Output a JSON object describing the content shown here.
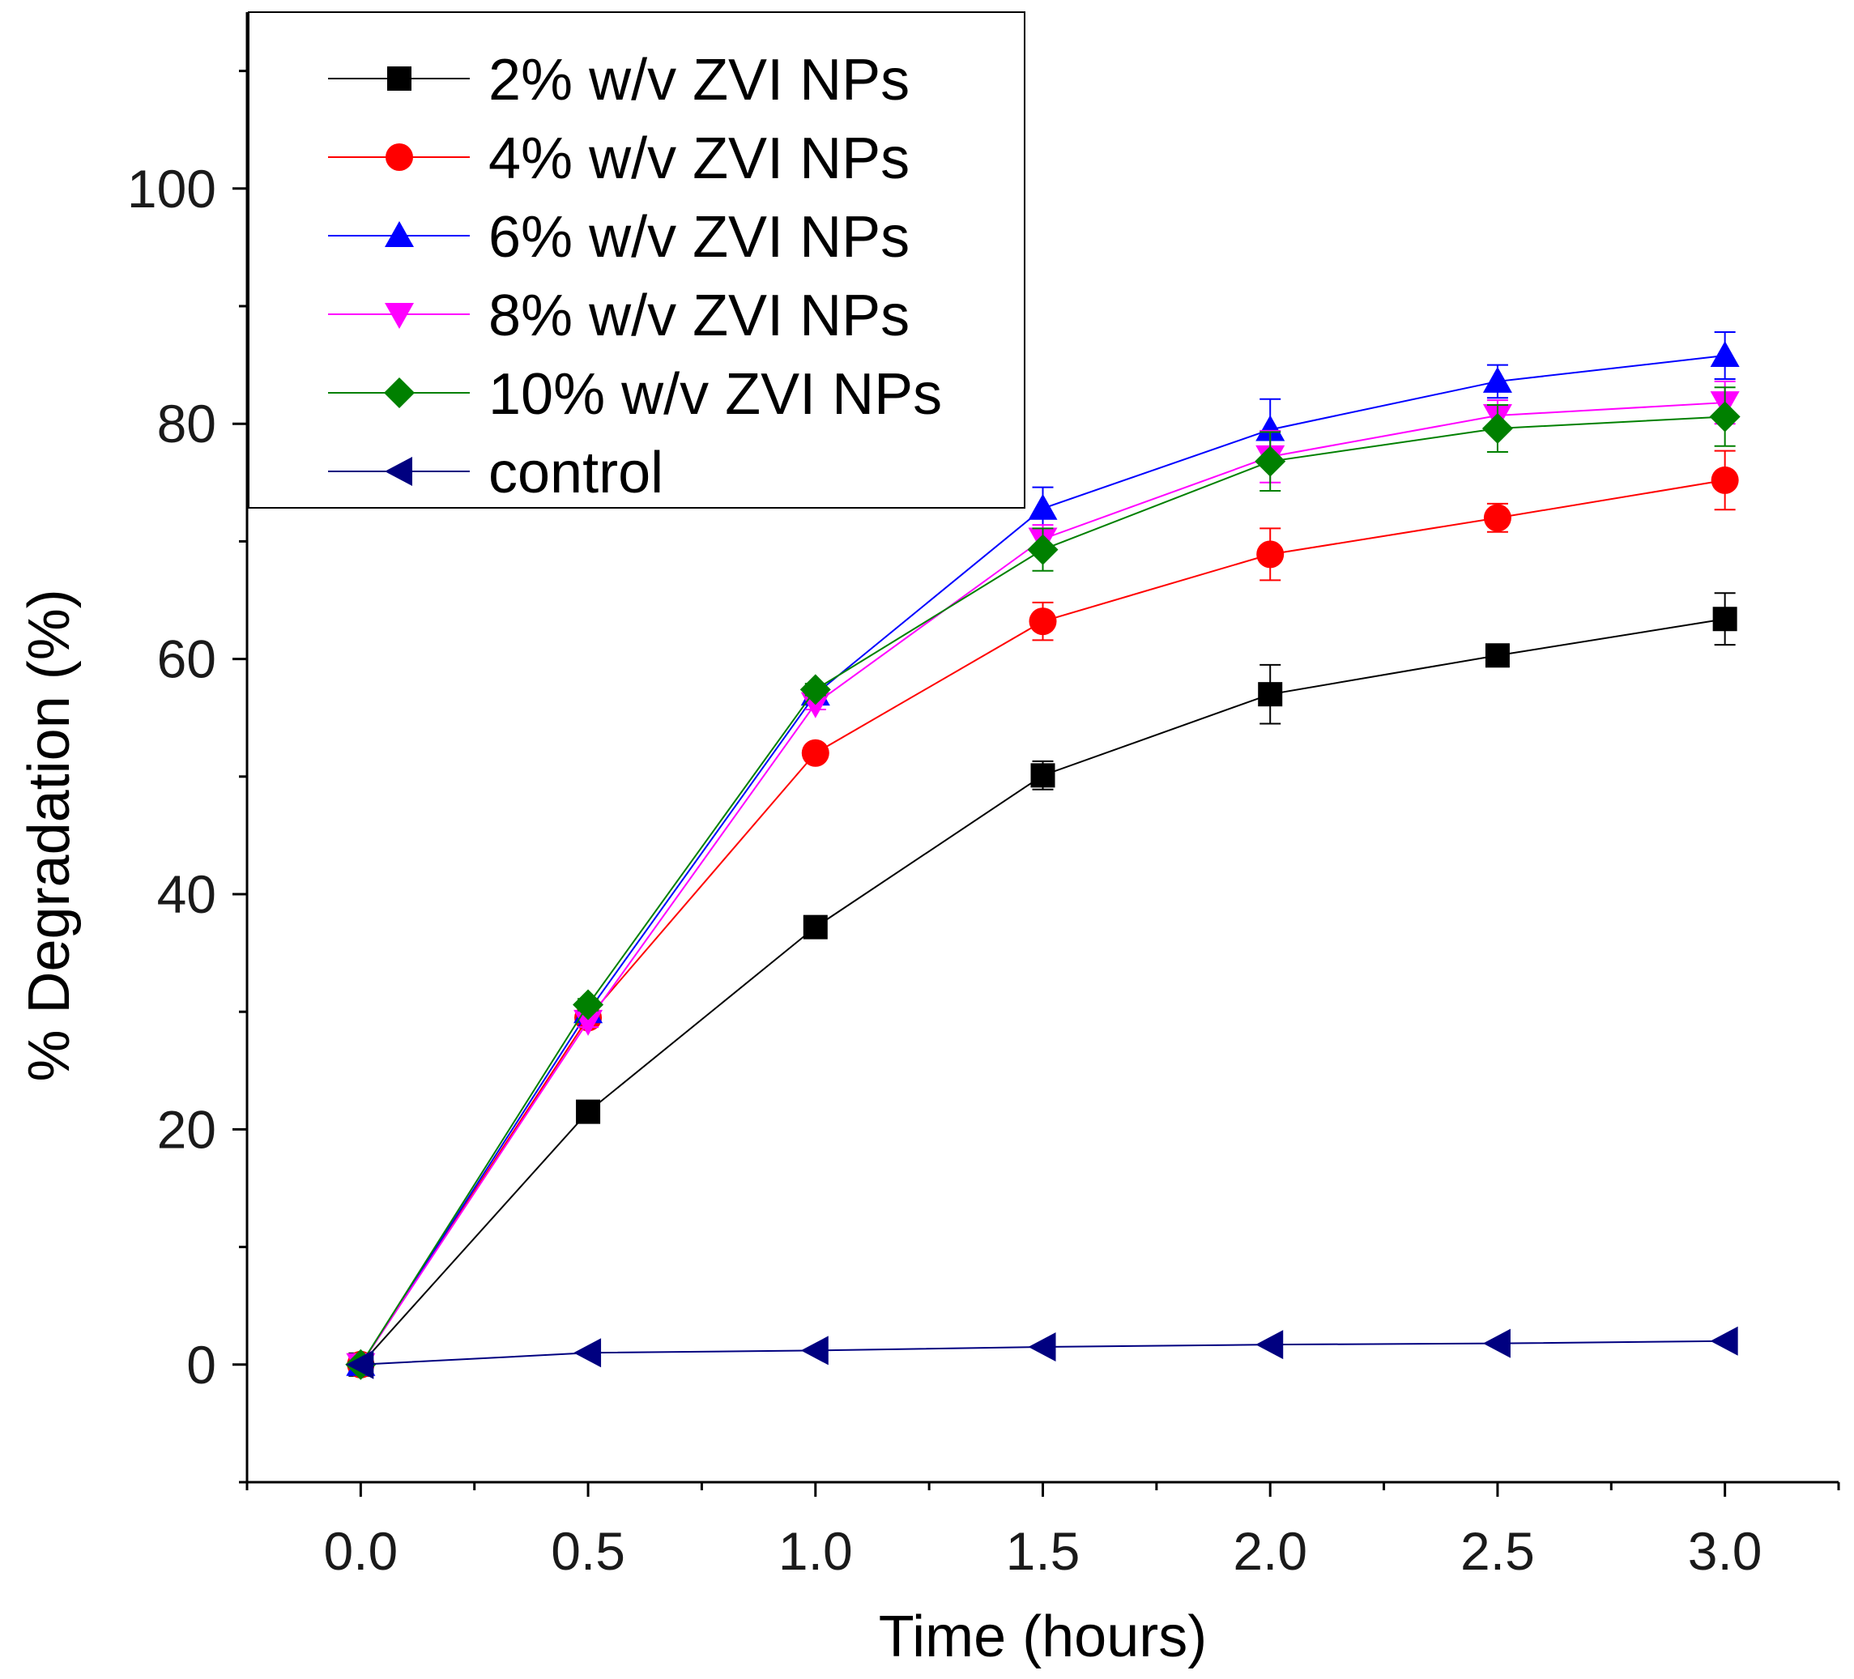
{
  "chart_data": {
    "type": "line",
    "title": "",
    "xlabel": "Time (hours)",
    "ylabel": "% Degradation (%)",
    "xlim": [
      -0.25,
      3.25
    ],
    "ylim": [
      -10,
      115
    ],
    "x_ticks": [
      "0.0",
      "0.5",
      "1.0",
      "1.5",
      "2.0",
      "2.5",
      "3.0"
    ],
    "y_ticks": [
      "0",
      "20",
      "40",
      "60",
      "80",
      "100"
    ],
    "legend_position": "top-left",
    "x": [
      0.0,
      0.5,
      1.0,
      1.5,
      2.0,
      2.5,
      3.0
    ],
    "series": [
      {
        "name": "2% w/v ZVI NPs",
        "color": "#000000",
        "marker": "square",
        "values": [
          0,
          21.5,
          37.2,
          50.1,
          57.0,
          60.3,
          63.4
        ],
        "errors": [
          0,
          0.5,
          0.6,
          1.2,
          2.5,
          0.8,
          2.2
        ]
      },
      {
        "name": "4% w/v ZVI NPs",
        "color": "#ff0000",
        "marker": "circle",
        "values": [
          0,
          29.5,
          52.0,
          63.2,
          68.9,
          72.0,
          75.2
        ],
        "errors": [
          0,
          0.6,
          0.7,
          1.6,
          2.2,
          1.2,
          2.5
        ]
      },
      {
        "name": "6% w/v ZVI NPs",
        "color": "#0000ff",
        "marker": "triangle-up",
        "values": [
          0,
          30.0,
          57.0,
          72.8,
          79.5,
          83.6,
          85.8
        ],
        "errors": [
          0,
          0.5,
          0.5,
          1.8,
          2.6,
          1.4,
          2.0
        ]
      },
      {
        "name": "8% w/v ZVI NPs",
        "color": "#ff00ff",
        "marker": "triangle-down",
        "values": [
          0,
          29.2,
          56.2,
          70.2,
          77.2,
          80.7,
          81.8
        ],
        "errors": [
          0,
          0.5,
          0.5,
          1.2,
          2.2,
          1.3,
          1.8
        ]
      },
      {
        "name": "10% w/v ZVI NPs",
        "color": "#008000",
        "marker": "diamond",
        "values": [
          0,
          30.6,
          57.4,
          69.3,
          76.8,
          79.6,
          80.6
        ],
        "errors": [
          0,
          0.5,
          0.5,
          1.8,
          2.5,
          2.0,
          2.5
        ]
      },
      {
        "name": "control",
        "color": "#000080",
        "marker": "triangle-left",
        "values": [
          0,
          1.0,
          1.2,
          1.5,
          1.7,
          1.8,
          2.0
        ],
        "errors": [
          0,
          0,
          0,
          0,
          0,
          0,
          0
        ]
      }
    ]
  }
}
